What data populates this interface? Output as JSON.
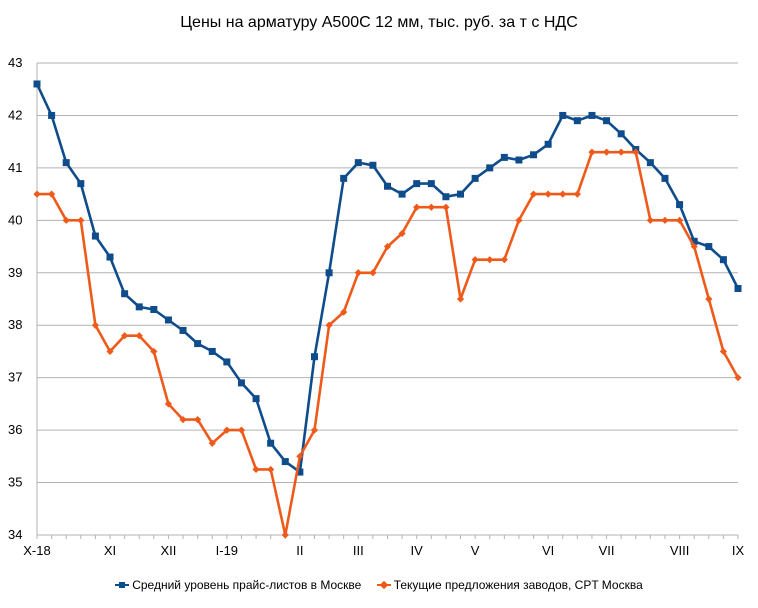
{
  "chart_data": {
    "type": "line",
    "title": "Цены на арматуру А500С 12 мм, тыс. руб. за т с НДС",
    "xlabel": "",
    "ylabel": "",
    "ylim": [
      34,
      43
    ],
    "yticks": [
      "34",
      "35",
      "36",
      "37",
      "38",
      "39",
      "40",
      "41",
      "42",
      "43"
    ],
    "xticks": [
      {
        "index": 0,
        "label": "X-18"
      },
      {
        "index": 5,
        "label": "XI"
      },
      {
        "index": 9,
        "label": "XII"
      },
      {
        "index": 13,
        "label": "I-19"
      },
      {
        "index": 18,
        "label": "II"
      },
      {
        "index": 22,
        "label": "III"
      },
      {
        "index": 26,
        "label": "IV"
      },
      {
        "index": 30,
        "label": "V"
      },
      {
        "index": 35,
        "label": "VI"
      },
      {
        "index": 39,
        "label": "VII"
      },
      {
        "index": 44,
        "label": "VIII"
      },
      {
        "index": 48,
        "label": "IX"
      }
    ],
    "grid": true,
    "legend_position": "bottom",
    "series": [
      {
        "name": "Средний уровень прайс-листов в Москве",
        "color": "#0e4c8c",
        "marker": "square",
        "values": [
          42.6,
          42.0,
          41.1,
          40.7,
          39.7,
          39.3,
          38.6,
          38.35,
          38.3,
          38.1,
          37.9,
          37.65,
          37.5,
          37.3,
          36.9,
          36.6,
          35.75,
          35.4,
          35.2,
          37.4,
          39.0,
          40.8,
          41.1,
          41.05,
          40.65,
          40.5,
          40.7,
          40.7,
          40.45,
          40.5,
          40.8,
          41.0,
          41.2,
          41.15,
          41.25,
          41.45,
          42.0,
          41.9,
          42.0,
          41.9,
          41.65,
          41.35,
          41.1,
          40.8,
          40.3,
          39.6,
          39.5,
          39.25,
          38.7
        ]
      },
      {
        "name": "Текущие предложения заводов, CPT Москва",
        "color": "#ef5a1a",
        "marker": "diamond",
        "values": [
          40.5,
          40.5,
          40.0,
          40.0,
          38.0,
          37.5,
          37.8,
          37.8,
          37.5,
          36.5,
          36.2,
          36.2,
          35.75,
          36.0,
          36.0,
          35.25,
          35.25,
          34.0,
          35.5,
          36.0,
          38.0,
          38.25,
          39.0,
          39.0,
          39.5,
          39.75,
          40.25,
          40.25,
          40.25,
          38.5,
          39.25,
          39.25,
          39.25,
          40.0,
          40.5,
          40.5,
          40.5,
          40.5,
          41.3,
          41.3,
          41.3,
          41.3,
          40.0,
          40.0,
          40.0,
          39.5,
          38.5,
          37.5,
          37.0
        ]
      }
    ]
  }
}
